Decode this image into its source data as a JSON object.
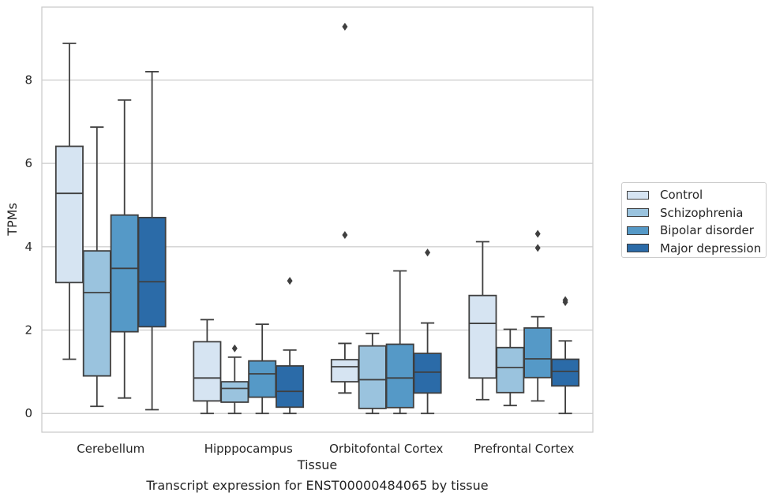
{
  "caption": "Transcript expression for ENST00000484065 by tissue",
  "chart_data": {
    "type": "box",
    "xlabel": "Tissue",
    "ylabel": "TPMs",
    "ylim": [
      -0.45,
      9.75
    ],
    "yticks": [
      0,
      2,
      4,
      6,
      8
    ],
    "grid": "horizontal",
    "legend_position": "right",
    "categories": [
      "Cerebellum",
      "Hipppocampus",
      "Orbitofontal Cortex",
      "Prefrontal Cortex"
    ],
    "series": [
      {
        "name": "Control",
        "color": "#d6e4f2",
        "boxes": [
          {
            "whisker_low": 1.3,
            "q1": 3.14,
            "median": 5.28,
            "q3": 6.41,
            "whisker_high": 8.88,
            "outliers": []
          },
          {
            "whisker_low": 0.0,
            "q1": 0.3,
            "median": 0.85,
            "q3": 1.72,
            "whisker_high": 2.25,
            "outliers": []
          },
          {
            "whisker_low": 0.49,
            "q1": 0.76,
            "median": 1.12,
            "q3": 1.29,
            "whisker_high": 1.68,
            "outliers": [
              4.28,
              9.28
            ]
          },
          {
            "whisker_low": 0.33,
            "q1": 0.85,
            "median": 2.16,
            "q3": 2.83,
            "whisker_high": 4.12,
            "outliers": []
          }
        ]
      },
      {
        "name": "Schizophrenia",
        "color": "#9ac3de",
        "boxes": [
          {
            "whisker_low": 0.17,
            "q1": 0.9,
            "median": 2.9,
            "q3": 3.9,
            "whisker_high": 6.87,
            "outliers": []
          },
          {
            "whisker_low": 0.0,
            "q1": 0.27,
            "median": 0.6,
            "q3": 0.76,
            "whisker_high": 1.35,
            "outliers": [
              1.56
            ]
          },
          {
            "whisker_low": 0.0,
            "q1": 0.12,
            "median": 0.81,
            "q3": 1.62,
            "whisker_high": 1.92,
            "outliers": []
          },
          {
            "whisker_low": 0.19,
            "q1": 0.5,
            "median": 1.1,
            "q3": 1.58,
            "whisker_high": 2.02,
            "outliers": []
          }
        ]
      },
      {
        "name": "Bipolar disorder",
        "color": "#5599c7",
        "boxes": [
          {
            "whisker_low": 0.37,
            "q1": 1.96,
            "median": 3.48,
            "q3": 4.76,
            "whisker_high": 7.52,
            "outliers": []
          },
          {
            "whisker_low": 0.0,
            "q1": 0.39,
            "median": 0.95,
            "q3": 1.26,
            "whisker_high": 2.14,
            "outliers": []
          },
          {
            "whisker_low": 0.0,
            "q1": 0.14,
            "median": 0.85,
            "q3": 1.66,
            "whisker_high": 3.42,
            "outliers": []
          },
          {
            "whisker_low": 0.3,
            "q1": 0.86,
            "median": 1.31,
            "q3": 2.05,
            "whisker_high": 2.32,
            "outliers": [
              3.97,
              4.31
            ]
          }
        ]
      },
      {
        "name": "Major depression",
        "color": "#2b6ba8",
        "boxes": [
          {
            "whisker_low": 0.09,
            "q1": 2.08,
            "median": 3.16,
            "q3": 4.7,
            "whisker_high": 8.2,
            "outliers": []
          },
          {
            "whisker_low": 0.0,
            "q1": 0.15,
            "median": 0.53,
            "q3": 1.14,
            "whisker_high": 1.52,
            "outliers": [
              3.18
            ]
          },
          {
            "whisker_low": 0.0,
            "q1": 0.49,
            "median": 0.99,
            "q3": 1.44,
            "whisker_high": 2.17,
            "outliers": [
              3.86
            ]
          },
          {
            "whisker_low": 0.0,
            "q1": 0.66,
            "median": 1.01,
            "q3": 1.3,
            "whisker_high": 1.74,
            "outliers": [
              2.67,
              2.72
            ]
          }
        ]
      }
    ]
  }
}
